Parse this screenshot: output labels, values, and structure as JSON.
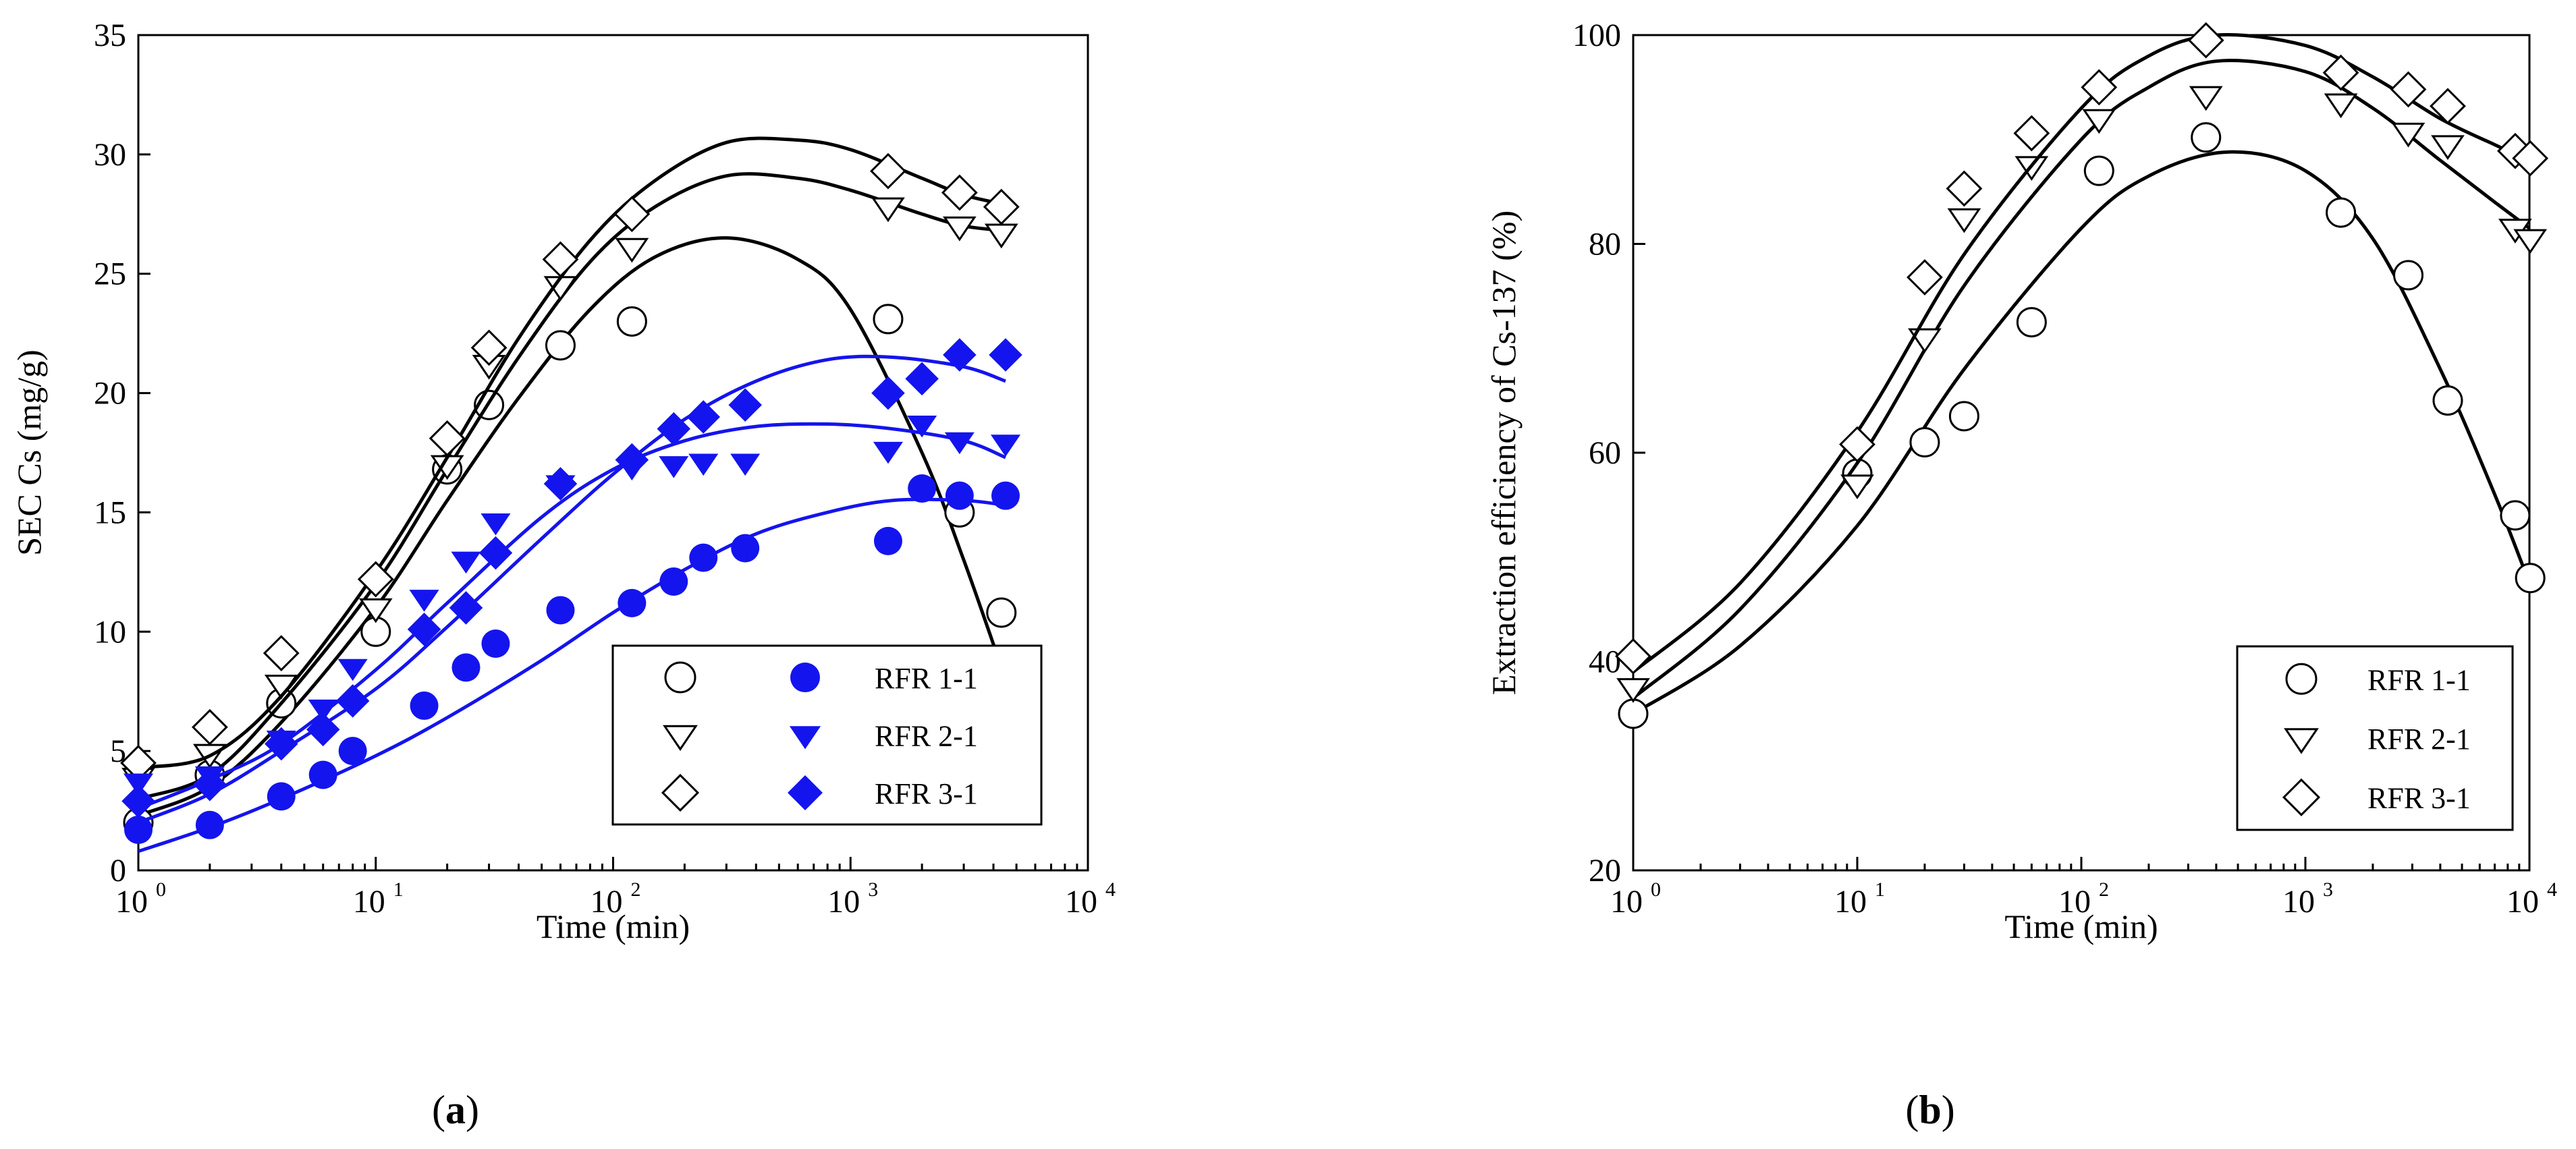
{
  "chart_data": [
    {
      "id": "a",
      "type": "scatter",
      "caption_letter": "a",
      "xlabel": "Time (min)",
      "ylabel": "SEC Cs (mg/g)",
      "xscale": "log",
      "xlim": [
        1,
        10000
      ],
      "ylim": [
        0,
        35
      ],
      "x_ticks": [
        1,
        10,
        100,
        1000,
        10000
      ],
      "x_tick_labels": [
        {
          "base": "10",
          "exp": "0"
        },
        {
          "base": "10",
          "exp": "1"
        },
        {
          "base": "10",
          "exp": "2"
        },
        {
          "base": "10",
          "exp": "3"
        },
        {
          "base": "10",
          "exp": "4"
        }
      ],
      "y_ticks": [
        0,
        5,
        10,
        15,
        20,
        25,
        30,
        35
      ],
      "y_tick_labels": [
        "0",
        "5",
        "10",
        "15",
        "20",
        "25",
        "30",
        "35"
      ],
      "legend_position": "bottom-right",
      "legend_columns": 2,
      "series": [
        {
          "name": "RFR 1-1",
          "group": "open",
          "marker": "circle",
          "color": "#000000",
          "filled": false,
          "x": [
            1,
            2,
            4,
            10,
            20,
            30,
            60,
            120,
            1440,
            2880,
            4320
          ],
          "y": [
            2.0,
            4.0,
            7.0,
            10.0,
            16.8,
            19.5,
            22.0,
            23.0,
            23.1,
            15.0,
            10.8
          ],
          "fit": {
            "x": [
              1,
              2,
              4,
              10,
              20,
              40,
              80,
              150,
              300,
              600,
              1000,
              2000,
              3000,
              4500
            ],
            "y": [
              2.3,
              3.5,
              6.2,
              11.0,
              15.5,
              19.8,
              23.5,
              25.7,
              26.5,
              25.6,
              23.5,
              17.5,
              13.0,
              8.0
            ]
          }
        },
        {
          "name": "RFR 2-1",
          "group": "open",
          "marker": "triangle-down",
          "color": "#000000",
          "filled": false,
          "x": [
            1,
            2,
            4,
            10,
            20,
            30,
            60,
            120,
            1440,
            2880,
            4320
          ],
          "y": [
            3.9,
            4.9,
            7.8,
            11.0,
            17.0,
            21.2,
            24.5,
            26.1,
            27.8,
            27.0,
            26.7
          ],
          "fit": {
            "x": [
              1,
              2,
              4,
              10,
              20,
              40,
              80,
              150,
              300,
              600,
              1000,
              2000,
              3000,
              4500
            ],
            "y": [
              3.0,
              4.0,
              7.0,
              12.0,
              16.8,
              21.5,
              25.5,
              27.8,
              29.1,
              29.0,
              28.5,
              27.5,
              27.0,
              26.8
            ]
          }
        },
        {
          "name": "RFR 3-1",
          "group": "open",
          "marker": "diamond",
          "color": "#000000",
          "filled": false,
          "x": [
            1,
            2,
            4,
            10,
            20,
            30,
            60,
            120,
            1440,
            2880,
            4320
          ],
          "y": [
            4.5,
            6.0,
            9.1,
            12.2,
            18.1,
            21.9,
            25.6,
            27.5,
            29.3,
            28.4,
            27.8
          ],
          "fit": {
            "x": [
              1,
              2,
              4,
              10,
              20,
              40,
              80,
              150,
              300,
              600,
              1000,
              2000,
              3000,
              4500
            ],
            "y": [
              4.3,
              4.8,
              7.3,
              12.5,
              17.3,
              22.3,
              26.4,
              28.9,
              30.5,
              30.6,
              30.2,
              29.0,
              28.3,
              27.9
            ]
          }
        },
        {
          "name": "RFR 1-1",
          "group": "filled",
          "marker": "circle",
          "color": "#1414ee",
          "filled": true,
          "x": [
            1,
            2,
            4,
            6,
            8,
            16,
            24,
            32,
            60,
            120,
            180,
            240,
            360,
            1440,
            2000,
            2880,
            4500
          ],
          "y": [
            1.7,
            1.9,
            3.1,
            4.0,
            5.0,
            6.9,
            8.5,
            9.5,
            10.9,
            11.2,
            12.1,
            13.1,
            13.5,
            13.8,
            16.0,
            15.7,
            15.7
          ],
          "fit": {
            "x": [
              1,
              2,
              4,
              10,
              20,
              50,
              100,
              200,
              400,
              800,
              1500,
              3000,
              4500
            ],
            "y": [
              0.8,
              1.8,
              3.0,
              4.8,
              6.4,
              8.8,
              10.8,
              12.6,
              14.1,
              15.0,
              15.5,
              15.5,
              15.3
            ]
          }
        },
        {
          "name": "RFR 2-1",
          "group": "filled",
          "marker": "triangle-down",
          "color": "#1414ee",
          "filled": true,
          "x": [
            1,
            2,
            4,
            6,
            8,
            16,
            24,
            32,
            60,
            120,
            180,
            240,
            360,
            1440,
            2000,
            2880,
            4500
          ],
          "y": [
            3.7,
            4.0,
            5.5,
            6.8,
            8.5,
            11.4,
            13.0,
            14.6,
            16.2,
            16.9,
            17.0,
            17.1,
            17.1,
            17.6,
            18.7,
            18.0,
            17.9
          ],
          "fit": {
            "x": [
              1,
              2,
              4,
              10,
              20,
              50,
              100,
              200,
              400,
              800,
              1500,
              3000,
              4500
            ],
            "y": [
              2.6,
              3.8,
              5.3,
              8.4,
              11.2,
              14.8,
              16.8,
              18.0,
              18.6,
              18.7,
              18.5,
              18.0,
              17.3
            ]
          }
        },
        {
          "name": "RFR 3-1",
          "group": "filled",
          "marker": "diamond",
          "color": "#1414ee",
          "filled": true,
          "x": [
            1,
            2,
            4,
            6,
            8,
            16,
            24,
            32,
            60,
            120,
            180,
            240,
            360,
            1440,
            2000,
            2880,
            4500
          ],
          "y": [
            2.9,
            3.6,
            5.3,
            5.9,
            7.1,
            10.1,
            11.0,
            13.3,
            16.2,
            17.2,
            18.5,
            19.0,
            19.5,
            20.0,
            20.6,
            21.6,
            21.6
          ],
          "fit": {
            "x": [
              1,
              2,
              4,
              10,
              20,
              50,
              100,
              200,
              400,
              800,
              1500,
              3000,
              4500
            ],
            "y": [
              2.0,
              3.2,
              5.0,
              7.6,
              10.2,
              13.9,
              16.6,
              18.9,
              20.5,
              21.4,
              21.5,
              21.1,
              20.5
            ]
          }
        }
      ]
    },
    {
      "id": "b",
      "type": "scatter",
      "caption_letter": "b",
      "xlabel": "Time (min)",
      "ylabel": "Extraction efficiency of Cs-137 (%)",
      "xscale": "log",
      "xlim": [
        1,
        10000
      ],
      "ylim": [
        20,
        100
      ],
      "x_ticks": [
        1,
        10,
        100,
        1000,
        10000
      ],
      "x_tick_labels": [
        {
          "base": "10",
          "exp": "0"
        },
        {
          "base": "10",
          "exp": "1"
        },
        {
          "base": "10",
          "exp": "2"
        },
        {
          "base": "10",
          "exp": "3"
        },
        {
          "base": "10",
          "exp": "4"
        }
      ],
      "y_ticks": [
        20,
        40,
        60,
        80,
        100
      ],
      "y_tick_labels": [
        "20",
        "40",
        "60",
        "80",
        "100"
      ],
      "legend_position": "bottom-right",
      "legend_columns": 1,
      "series": [
        {
          "name": "RFR 1-1",
          "marker": "circle",
          "color": "#000000",
          "filled": false,
          "x": [
            1,
            10,
            20,
            30,
            60,
            120,
            360,
            1440,
            2880,
            4320,
            8640,
            10080
          ],
          "y": [
            35,
            58,
            61,
            63.5,
            72.5,
            87,
            90.2,
            83,
            77,
            65,
            54,
            48
          ],
          "fit": {
            "x": [
              1,
              3,
              10,
              30,
              100,
              200,
              450,
              1000,
              2000,
              4000,
              7000,
              10000
            ],
            "y": [
              35.0,
              41.5,
              53.0,
              68.0,
              81.5,
              86.5,
              88.8,
              87.0,
              80.5,
              68.0,
              56.0,
              47.5
            ]
          }
        },
        {
          "name": "RFR 2-1",
          "marker": "triangle-down",
          "color": "#000000",
          "filled": false,
          "x": [
            1,
            10,
            20,
            30,
            60,
            120,
            360,
            1440,
            2880,
            4320,
            8640,
            10080
          ],
          "y": [
            37.5,
            57,
            71,
            82.5,
            87.5,
            92,
            94.2,
            93.5,
            90.7,
            89.5,
            81.5,
            80.5
          ],
          "fit": {
            "x": [
              1,
              3,
              10,
              30,
              100,
              200,
              400,
              1000,
              2000,
              4000,
              7000,
              10000
            ],
            "y": [
              36.5,
              45.0,
              59.0,
              76.0,
              90.0,
              95.0,
              97.5,
              96.5,
              93.0,
              88.0,
              84.0,
              81.5
            ]
          }
        },
        {
          "name": "RFR 3-1",
          "marker": "diamond",
          "color": "#000000",
          "filled": false,
          "x": [
            1,
            10,
            20,
            30,
            60,
            120,
            360,
            1440,
            2880,
            4320,
            8640,
            10080
          ],
          "y": [
            40.5,
            60.8,
            76.8,
            85.3,
            90.6,
            95.0,
            99.5,
            96.4,
            94.8,
            93.2,
            88.9,
            88.2
          ],
          "fit": {
            "x": [
              1,
              3,
              10,
              30,
              100,
              200,
              400,
              1000,
              2000,
              4000,
              7000,
              10000
            ],
            "y": [
              39.0,
              47.5,
              62.0,
              79.0,
              93.0,
              98.0,
              100.0,
              99.0,
              96.0,
              92.0,
              89.5,
              88.0
            ]
          }
        }
      ]
    }
  ]
}
